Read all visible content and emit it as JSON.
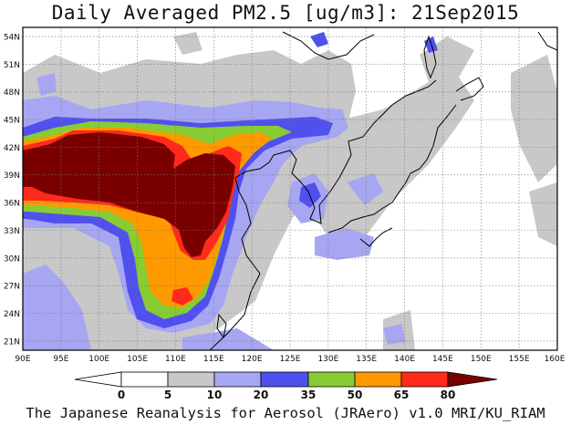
{
  "title": "Daily Averaged PM2.5 [ug/m3]: 21Sep2015",
  "footer": "The Japanese Reanalysis for Aerosol (JRAero) v1.0 MRI/KU_RIAM",
  "map": {
    "lon_range": [
      90,
      160
    ],
    "lat_range": [
      20,
      55
    ],
    "lon_ticks": [
      "90E",
      "95E",
      "100E",
      "105E",
      "110E",
      "115E",
      "120E",
      "125E",
      "130E",
      "135E",
      "140E",
      "145E",
      "150E",
      "155E",
      "160E"
    ],
    "lat_ticks": [
      "54N",
      "51N",
      "48N",
      "45N",
      "42N",
      "39N",
      "36N",
      "33N",
      "30N",
      "27N",
      "24N",
      "21N"
    ],
    "grid": true
  },
  "colorbar": {
    "labels": [
      "0",
      "5",
      "10",
      "20",
      "35",
      "50",
      "65",
      "80"
    ],
    "colors": {
      "c0": "#ffffff",
      "c5": "#c8c8c8",
      "c10": "#a6a6f2",
      "c20": "#5050ee",
      "c35": "#88cc33",
      "c50": "#ff9900",
      "c65": "#ff2a1a",
      "c80": "#7a0000"
    }
  }
}
